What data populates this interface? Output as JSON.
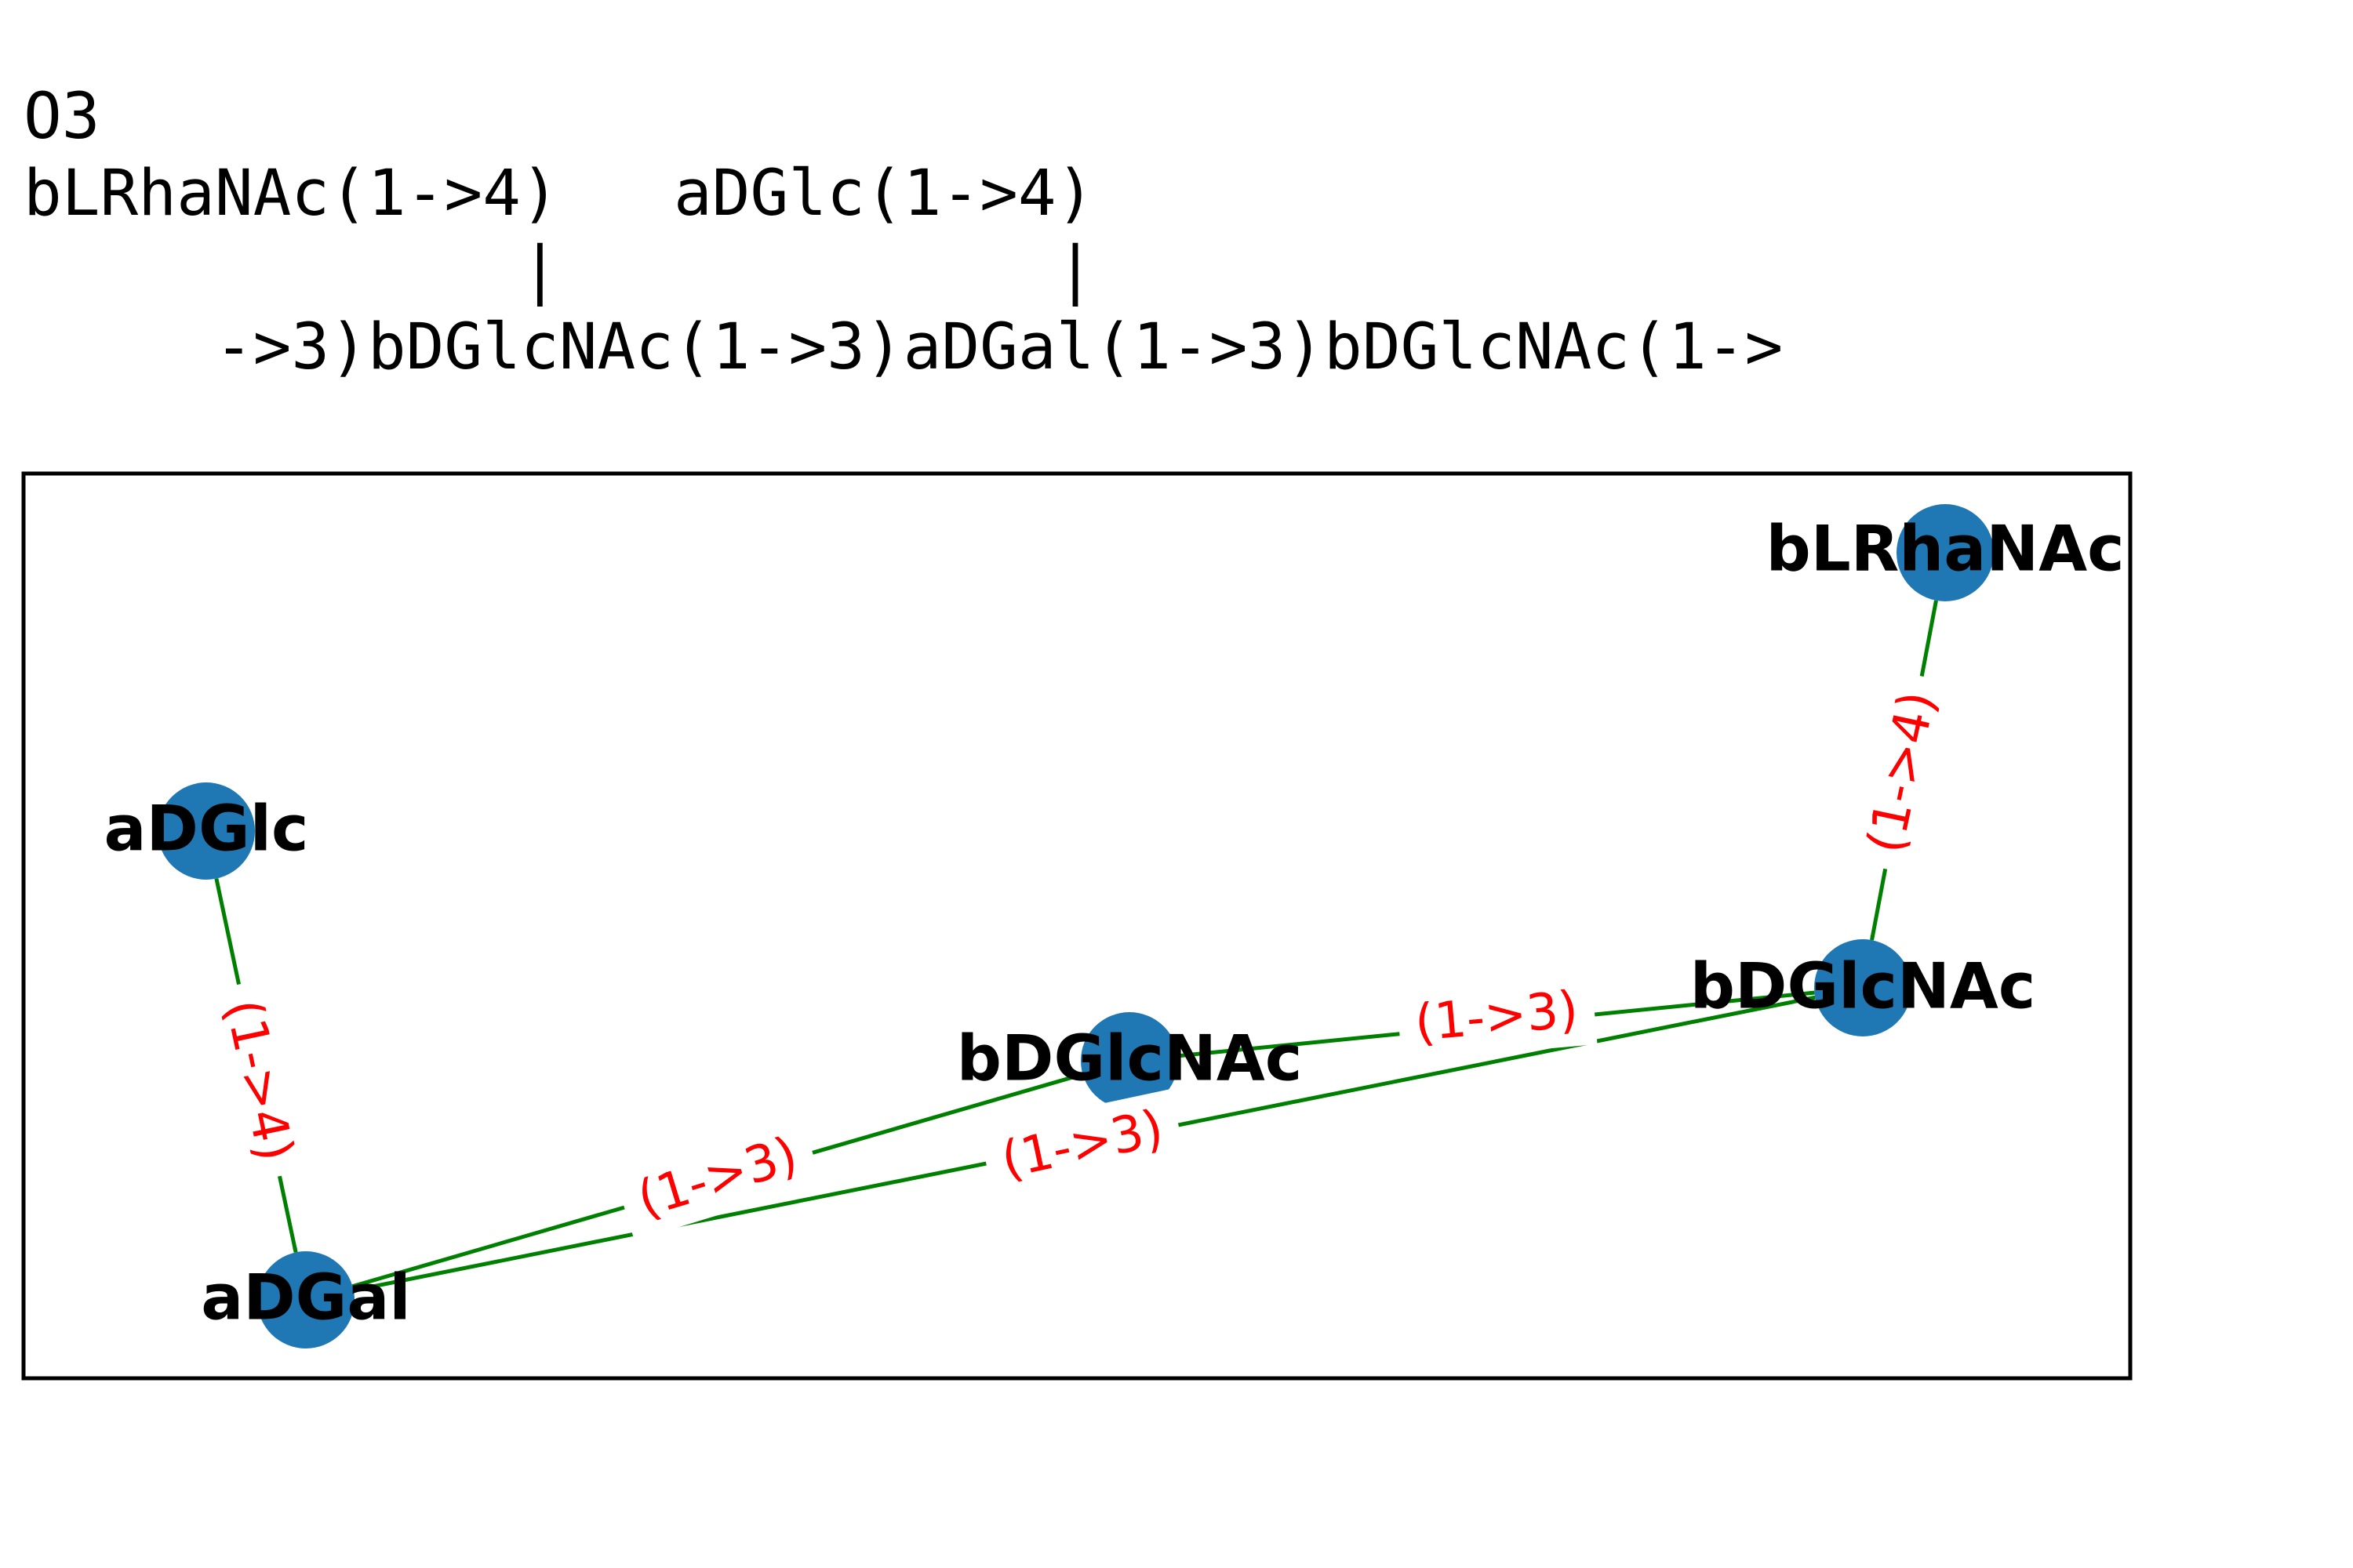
{
  "title": "O3",
  "structure_lines": [
    "bLRhaNAc(1->4)   aDGlc(1->4)",
    "             |             |",
    "     ->3)bDGlcNAc(1->3)aDGal(1->3)bDGlcNAc(1->"
  ],
  "colors": {
    "node": "#1f77b4",
    "edge": "#008000",
    "edge_label": "#ff0000",
    "frame": "#000000"
  },
  "graph": {
    "nodes": [
      {
        "id": "n_rha",
        "label": "bLRhaNAc"
      },
      {
        "id": "n_glc",
        "label": "aDGlc"
      },
      {
        "id": "n_gal",
        "label": "aDGal"
      },
      {
        "id": "n_glcnac_mid",
        "label": "bDGlcNAc"
      },
      {
        "id": "n_glcnac_right",
        "label": "bDGlcNAc"
      }
    ],
    "edges": [
      {
        "from": "n_rha",
        "to": "n_glcnac_right",
        "label": "(1->4)"
      },
      {
        "from": "n_glc",
        "to": "n_gal",
        "label": "(1->4)"
      },
      {
        "from": "n_gal",
        "to": "n_glcnac_mid",
        "label": "(1->3)"
      },
      {
        "from": "n_glcnac_mid",
        "to": "n_glcnac_right",
        "label": "(1->3)"
      },
      {
        "from": "n_glcnac_right",
        "to": "n_gal",
        "label": "(1->3)"
      }
    ]
  }
}
